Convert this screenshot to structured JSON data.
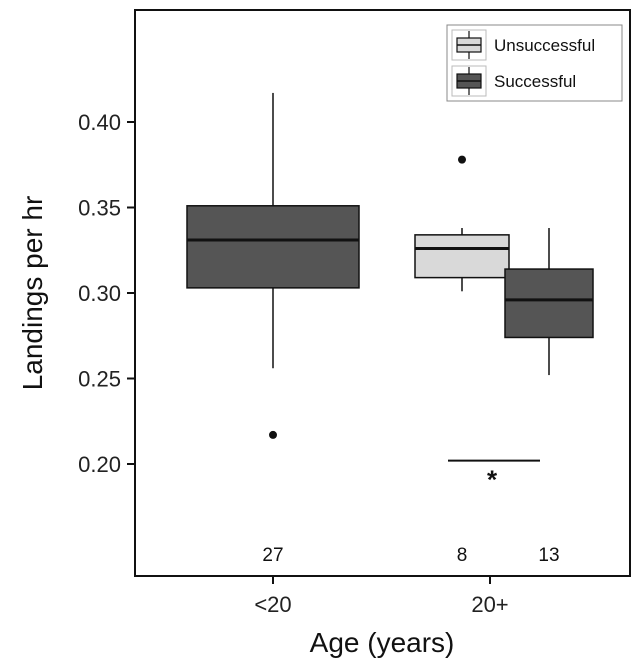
{
  "chart_data": {
    "type": "boxplot",
    "xlabel": "Age (years)",
    "ylabel": "Landings per hr",
    "ylim": [
      0.14,
      0.46
    ],
    "yticks": [
      "0.20",
      "0.25",
      "0.30",
      "0.35",
      "0.40"
    ],
    "categories": [
      "<20",
      "20+"
    ],
    "series": [
      {
        "name": "Unsuccessful",
        "color": "#d9d9d9"
      },
      {
        "name": "Successful",
        "color": "#555555"
      }
    ],
    "boxes": [
      {
        "category": "<20",
        "series": "Successful",
        "min": 0.256,
        "q1": 0.303,
        "median": 0.331,
        "q3": 0.351,
        "max": 0.417,
        "outliers": [
          0.217
        ],
        "n": "27"
      },
      {
        "category": "20+",
        "series": "Unsuccessful",
        "min": 0.301,
        "q1": 0.309,
        "median": 0.326,
        "q3": 0.334,
        "max": 0.338,
        "outliers": [
          0.378
        ],
        "n": "8"
      },
      {
        "category": "20+",
        "series": "Successful",
        "min": 0.252,
        "q1": 0.274,
        "median": 0.296,
        "q3": 0.314,
        "max": 0.338,
        "outliers": [],
        "n": "13"
      }
    ],
    "annotations": [
      {
        "text": "*",
        "y": 0.202
      }
    ],
    "grid": false,
    "legend_position": "top-right"
  }
}
